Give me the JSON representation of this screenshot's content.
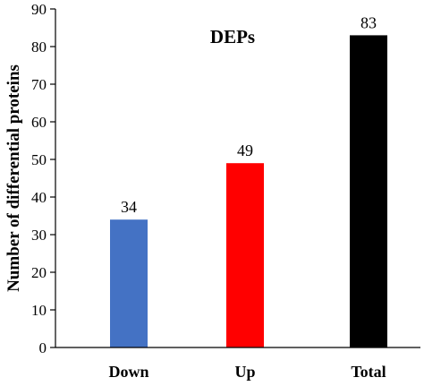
{
  "chart_data": {
    "type": "bar",
    "title": "DEPs",
    "xlabel": "",
    "ylabel": "Number of differential proteins",
    "categories": [
      "Down",
      "Up",
      "Total"
    ],
    "values": [
      34,
      49,
      83
    ],
    "data_labels": [
      "34",
      "49",
      "83"
    ],
    "colors": [
      "#4472C4",
      "#FF0000",
      "#000000"
    ],
    "ylim": [
      0,
      90
    ],
    "yticks": [
      0,
      10,
      20,
      30,
      40,
      50,
      60,
      70,
      80,
      90
    ],
    "grid": false,
    "legend": "none"
  }
}
